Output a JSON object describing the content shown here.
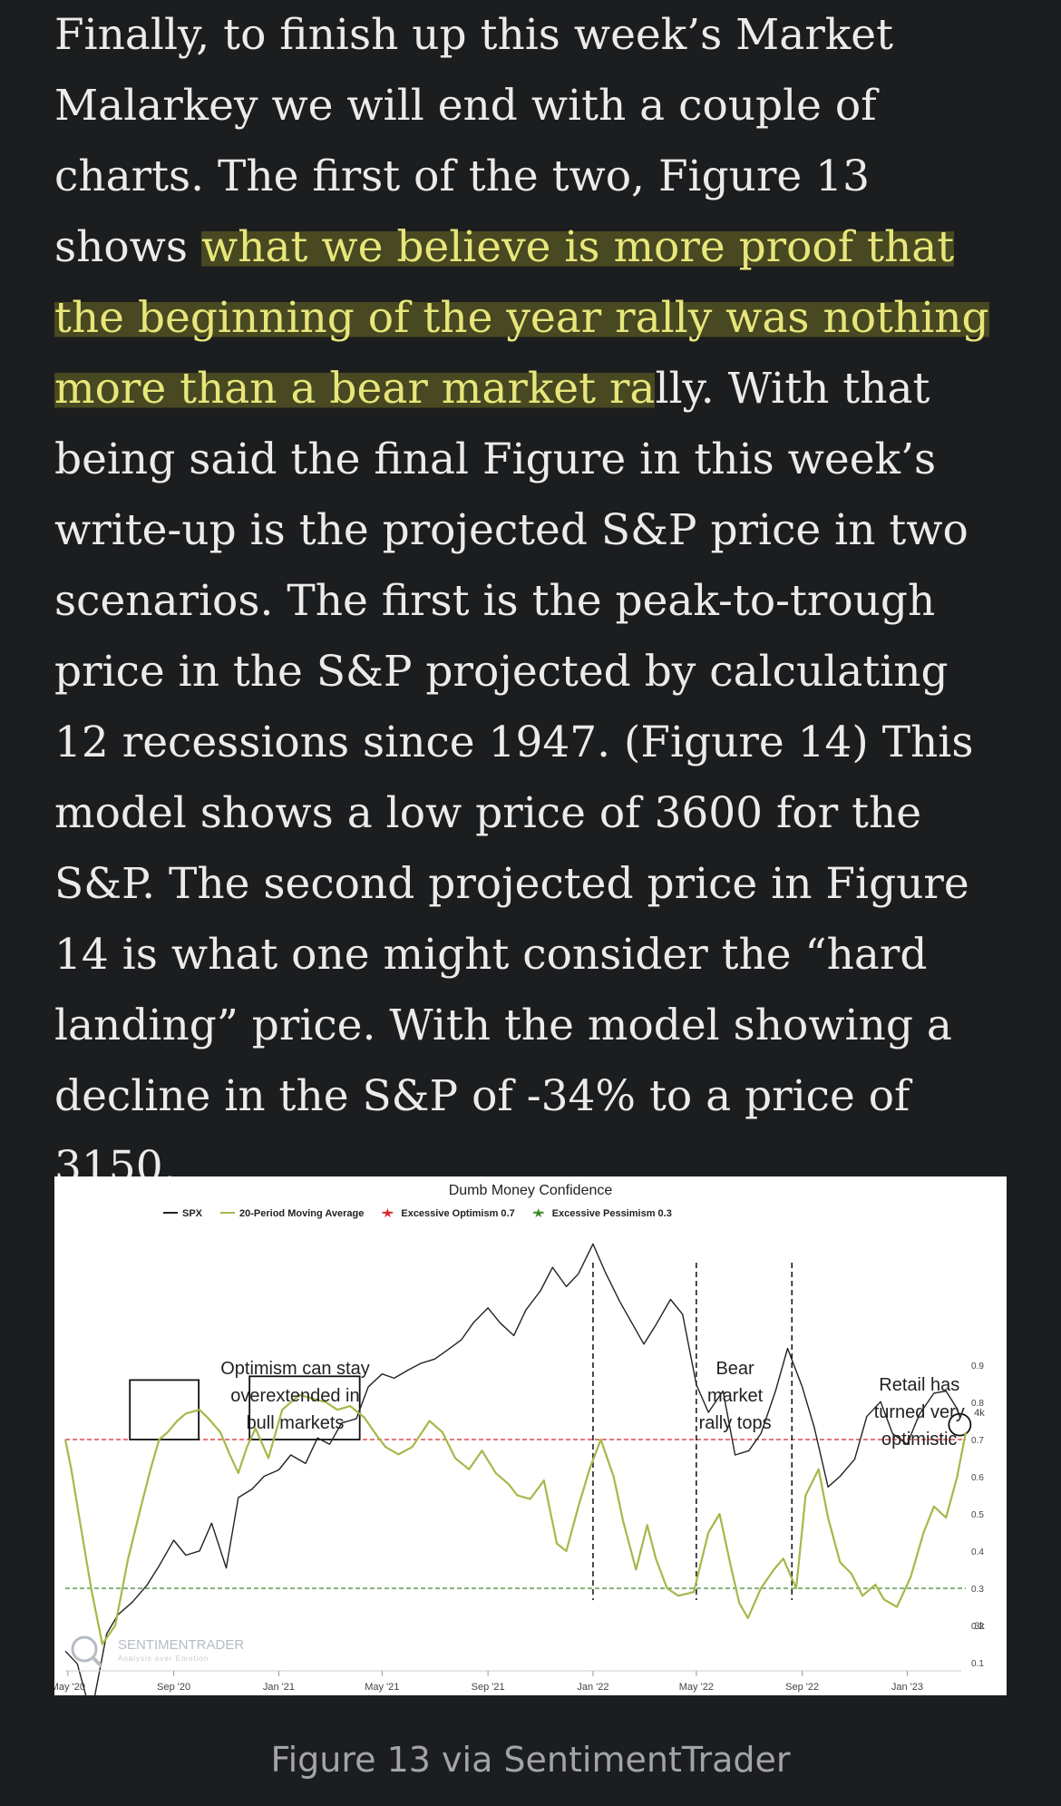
{
  "article": {
    "text_before": "Finally, to finish up this week’s Market Malarkey we will end with a couple of charts. The first of the two, Figure 13 shows ",
    "highlight": "what we believe is more proof that the beginning of the year rally was nothing more than a bear market ra",
    "text_after": "lly. With that being said the final Figure in this week’s write-up is the projected S&P price in two scenarios. The first is the peak-to-trough price in the S&P projected by calculating 12 recessions since 1947. (Figure 14) This model shows a low price of 3600 for the S&P. The second projected price in Figure 14 is what one might consider the “hard landing” price. With the model showing a decline in the S&P of -34% to a price of 3150."
  },
  "figure": {
    "caption": "Figure 13 via SentimentTrader",
    "watermark": "SENTIMENTRADER",
    "watermark_tagline": "Analysis over Emotion"
  },
  "colors": {
    "background": "#1c1d1f",
    "highlight_text": "#e7e67a",
    "spx_line": "#222222",
    "confidence_line": "#a5b84a",
    "optimism_line": "#d9262c",
    "pessimism_line": "#3b8a2d"
  },
  "chart_data": {
    "type": "line",
    "title": "Dumb Money Confidence",
    "legend": [
      {
        "label": "SPX",
        "color": "#222222",
        "marker": "line"
      },
      {
        "label": "20-Period Moving Average",
        "color": "#a5b84a",
        "marker": "line"
      },
      {
        "label": "Excessive Optimism 0.7",
        "color": "#d9262c",
        "marker": "star"
      },
      {
        "label": "Excessive Pessimism 0.3",
        "color": "#3b8a2d",
        "marker": "star"
      }
    ],
    "legend_position": "top",
    "x_ticks": [
      "May '20",
      "Sep '20",
      "Jan '21",
      "May '21",
      "Sep '21",
      "Jan '22",
      "May '22",
      "Sep '22",
      "Jan '23"
    ],
    "x_range": [
      "2020-05",
      "2023-03"
    ],
    "spx_axis_ticks": [
      "4k",
      "3k",
      "2k"
    ],
    "confidence_axis_ticks": [
      "0.9",
      "0.8",
      "0.7",
      "0.6",
      "0.5",
      "0.4",
      "0.3",
      "0.2",
      "0.1"
    ],
    "grid": false,
    "thresholds": [
      {
        "name": "Excessive Optimism",
        "value": 0.7,
        "color": "#d9262c",
        "style": "dashed"
      },
      {
        "name": "Excessive Pessimism",
        "value": 0.3,
        "color": "#3b8a2d",
        "style": "dashed"
      }
    ],
    "series": [
      {
        "name": "SPX",
        "x": [
          "2020-04-28",
          "2020-05-12",
          "2020-05-28",
          "2020-06-15",
          "2020-06-28",
          "2020-07-15",
          "2020-08-01",
          "2020-08-15",
          "2020-09-01",
          "2020-09-15",
          "2020-10-01",
          "2020-10-15",
          "2020-11-01",
          "2020-11-15",
          "2020-12-01",
          "2020-12-15",
          "2021-01-01",
          "2021-01-15",
          "2021-02-01",
          "2021-02-15",
          "2021-03-01",
          "2021-03-15",
          "2021-04-01",
          "2021-04-15",
          "2021-05-01",
          "2021-05-15",
          "2021-06-01",
          "2021-06-15",
          "2021-07-01",
          "2021-07-15",
          "2021-08-01",
          "2021-08-15",
          "2021-09-01",
          "2021-09-15",
          "2021-10-01",
          "2021-10-15",
          "2021-11-01",
          "2021-11-15",
          "2021-12-01",
          "2021-12-15",
          "2022-01-01",
          "2022-01-15",
          "2022-02-01",
          "2022-02-15",
          "2022-03-01",
          "2022-03-15",
          "2022-04-01",
          "2022-04-15",
          "2022-05-01",
          "2022-05-15",
          "2022-06-01",
          "2022-06-15",
          "2022-07-01",
          "2022-07-15",
          "2022-08-01",
          "2022-08-15",
          "2022-09-01",
          "2022-09-15",
          "2022-10-01",
          "2022-10-15",
          "2022-11-01",
          "2022-11-15",
          "2022-12-01",
          "2022-12-15",
          "2023-01-01",
          "2023-01-15",
          "2023-02-01",
          "2023-02-15",
          "2023-03-01"
        ],
        "values": [
          2880,
          2820,
          2580,
          2960,
          3050,
          3110,
          3190,
          3280,
          3400,
          3330,
          3350,
          3480,
          3270,
          3600,
          3640,
          3700,
          3730,
          3800,
          3760,
          3880,
          3850,
          3950,
          3970,
          4120,
          4180,
          4160,
          4200,
          4230,
          4250,
          4290,
          4340,
          4420,
          4490,
          4420,
          4360,
          4480,
          4570,
          4680,
          4590,
          4650,
          4790,
          4660,
          4520,
          4420,
          4320,
          4410,
          4530,
          4460,
          4130,
          4000,
          4100,
          3800,
          3820,
          3900,
          4100,
          4300,
          4120,
          3930,
          3650,
          3700,
          3780,
          3980,
          4050,
          3900,
          3850,
          3990,
          4090,
          4100,
          4010
        ]
      },
      {
        "name": "20-Period Moving Average",
        "x": [
          "2020-04-28",
          "2020-05-05",
          "2020-05-15",
          "2020-05-28",
          "2020-06-10",
          "2020-06-25",
          "2020-07-10",
          "2020-07-25",
          "2020-08-05",
          "2020-08-15",
          "2020-08-25",
          "2020-09-05",
          "2020-09-15",
          "2020-10-01",
          "2020-10-10",
          "2020-10-25",
          "2020-11-05",
          "2020-11-15",
          "2020-11-25",
          "2020-12-05",
          "2020-12-20",
          "2021-01-05",
          "2021-01-25",
          "2021-02-10",
          "2021-02-25",
          "2021-03-10",
          "2021-03-25",
          "2021-04-10",
          "2021-04-25",
          "2021-05-05",
          "2021-05-20",
          "2021-06-05",
          "2021-06-25",
          "2021-07-10",
          "2021-07-25",
          "2021-08-10",
          "2021-08-25",
          "2021-09-10",
          "2021-09-25",
          "2021-10-05",
          "2021-10-20",
          "2021-11-05",
          "2021-11-20",
          "2021-12-01",
          "2021-12-15",
          "2021-12-28",
          "2022-01-10",
          "2022-01-25",
          "2022-02-05",
          "2022-02-20",
          "2022-03-05",
          "2022-03-15",
          "2022-03-28",
          "2022-04-10",
          "2022-04-28",
          "2022-05-15",
          "2022-05-28",
          "2022-06-10",
          "2022-06-20",
          "2022-06-30",
          "2022-07-15",
          "2022-07-30",
          "2022-08-10",
          "2022-08-25",
          "2022-09-05",
          "2022-09-20",
          "2022-10-01",
          "2022-10-15",
          "2022-10-28",
          "2022-11-10",
          "2022-11-25",
          "2022-12-05",
          "2022-12-20",
          "2023-01-05",
          "2023-01-20",
          "2023-02-01",
          "2023-02-15",
          "2023-02-28",
          "2023-03-10"
        ],
        "values": [
          0.7,
          0.62,
          0.48,
          0.3,
          0.15,
          0.2,
          0.38,
          0.52,
          0.62,
          0.7,
          0.72,
          0.75,
          0.77,
          0.78,
          0.76,
          0.72,
          0.66,
          0.61,
          0.68,
          0.73,
          0.65,
          0.78,
          0.82,
          0.81,
          0.8,
          0.78,
          0.79,
          0.76,
          0.71,
          0.68,
          0.66,
          0.68,
          0.75,
          0.72,
          0.65,
          0.62,
          0.67,
          0.61,
          0.58,
          0.55,
          0.54,
          0.59,
          0.42,
          0.4,
          0.52,
          0.62,
          0.7,
          0.6,
          0.48,
          0.35,
          0.47,
          0.38,
          0.3,
          0.28,
          0.29,
          0.45,
          0.5,
          0.36,
          0.26,
          0.22,
          0.3,
          0.35,
          0.38,
          0.3,
          0.55,
          0.62,
          0.49,
          0.37,
          0.34,
          0.28,
          0.31,
          0.27,
          0.25,
          0.33,
          0.45,
          0.52,
          0.49,
          0.6,
          0.72
        ]
      }
    ],
    "annotations": [
      {
        "text": "Optimism can stay overextended in bull markets",
        "lines": [
          "Optimism can stay",
          "overextended in",
          "bull markets"
        ]
      },
      {
        "text": "Bear market rally tops",
        "lines": [
          "Bear",
          "market",
          "rally tops"
        ]
      },
      {
        "text": "Retail has turned very optimistic",
        "lines": [
          "Retail has",
          "turned very",
          "optimistic"
        ]
      }
    ],
    "vertical_markers": [
      "2022-01-01",
      "2022-05-01",
      "2022-08-20"
    ]
  }
}
